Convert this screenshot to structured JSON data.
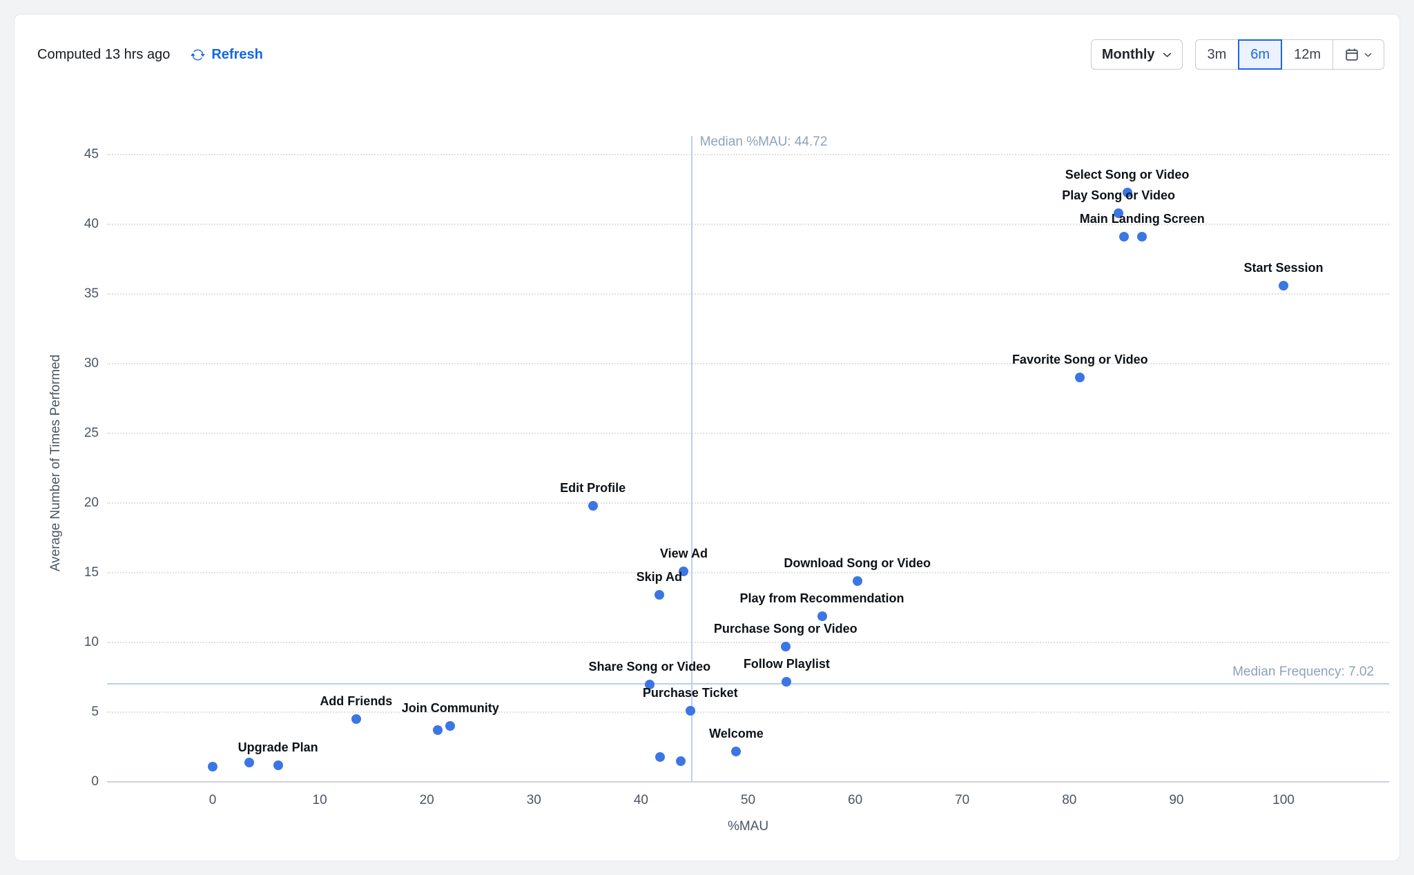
{
  "header": {
    "computed_text": "Computed 13 hrs ago",
    "refresh_label": "Refresh",
    "interval_label": "Monthly",
    "range_options": [
      "3m",
      "6m",
      "12m"
    ],
    "selected_range": "6m"
  },
  "colors": {
    "accent_blue": "#1266e8",
    "point_blue": "#3b76e3",
    "median_line": "#bad0ee",
    "median_label": "#8da2ba"
  },
  "chart_data": {
    "type": "scatter",
    "title": "",
    "xlabel": "%MAU",
    "ylabel": "Average Number of Times Performed",
    "x_ticks": [
      0,
      10,
      20,
      30,
      40,
      50,
      60,
      70,
      80,
      90,
      100
    ],
    "y_ticks": [
      0,
      5,
      10,
      15,
      20,
      25,
      30,
      35,
      40,
      45
    ],
    "xlim": [
      -10,
      110
    ],
    "ylim": [
      0,
      46
    ],
    "grid": "horizontal-dotted",
    "legend": "none",
    "median_x": {
      "label": "Median %MAU: 44.72",
      "value": 44.72
    },
    "median_y": {
      "label": "Median Frequency: 7.02",
      "value": 7.02
    },
    "points": [
      {
        "label": "Select Song or Video",
        "x": 85.4,
        "y": 42.3
      },
      {
        "label": "Play Song or Video",
        "x": 84.6,
        "y": 40.8
      },
      {
        "label": "Main Landing Screen",
        "x": 86.8,
        "y": 39.1
      },
      {
        "label": "",
        "x": 85.1,
        "y": 39.1
      },
      {
        "label": "Start Session",
        "x": 100,
        "y": 35.6
      },
      {
        "label": "Favorite Song or Video",
        "x": 81.0,
        "y": 29.0
      },
      {
        "label": "Edit Profile",
        "x": 35.5,
        "y": 19.8
      },
      {
        "label": "View Ad",
        "x": 44.0,
        "y": 15.1
      },
      {
        "label": "Download Song or Video",
        "x": 60.2,
        "y": 14.4
      },
      {
        "label": "Skip Ad",
        "x": 41.7,
        "y": 13.4
      },
      {
        "label": "Play from Recommendation",
        "x": 56.9,
        "y": 11.9
      },
      {
        "label": "Purchase Song or Video",
        "x": 53.5,
        "y": 9.7
      },
      {
        "label": "Follow Playlist",
        "x": 53.6,
        "y": 7.2
      },
      {
        "label": "Share Song or Video",
        "x": 40.8,
        "y": 7.0
      },
      {
        "label": "Purchase Ticket",
        "x": 44.6,
        "y": 5.1
      },
      {
        "label": "Add Friends",
        "x": 13.4,
        "y": 4.5
      },
      {
        "label": "Join Community",
        "x": 22.2,
        "y": 4.0
      },
      {
        "label": "",
        "x": 21.0,
        "y": 3.7
      },
      {
        "label": "Welcome",
        "x": 48.9,
        "y": 2.2
      },
      {
        "label": "",
        "x": 41.8,
        "y": 1.8
      },
      {
        "label": "",
        "x": 43.7,
        "y": 1.5
      },
      {
        "label": "Upgrade Plan",
        "x": 6.1,
        "y": 1.2
      },
      {
        "label": "",
        "x": 3.4,
        "y": 1.4
      },
      {
        "label": "",
        "x": 0,
        "y": 1.1
      }
    ]
  }
}
